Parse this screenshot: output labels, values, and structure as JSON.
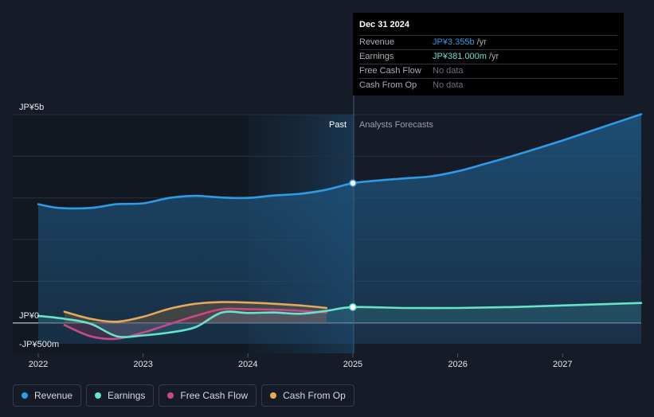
{
  "tooltip": {
    "date": "Dec 31 2024",
    "rows": [
      {
        "label": "Revenue",
        "value": "JP¥3.355b",
        "unit": "/yr",
        "color": "#2f9be6"
      },
      {
        "label": "Earnings",
        "value": "JP¥381.000m",
        "unit": "/yr",
        "color": "#67e3cc"
      },
      {
        "label": "Free Cash Flow",
        "value": "No data",
        "unit": "",
        "color": "#6b7080"
      },
      {
        "label": "Cash From Op",
        "value": "No data",
        "unit": "",
        "color": "#6b7080"
      }
    ]
  },
  "legend": [
    {
      "label": "Revenue",
      "color": "#2f9be6"
    },
    {
      "label": "Earnings",
      "color": "#67e3cc"
    },
    {
      "label": "Free Cash Flow",
      "color": "#c44b87"
    },
    {
      "label": "Cash From Op",
      "color": "#e8a85a"
    }
  ],
  "chart_data": {
    "type": "line",
    "currency_unit": "JP¥ millions",
    "y_tick_labels": [
      {
        "label": "JP¥5b",
        "value": 5000
      },
      {
        "label": "JP¥0",
        "value": 0
      },
      {
        "label": "-JP¥500m",
        "value": -500
      }
    ],
    "ylim": [
      -500,
      5000
    ],
    "x_ticks": [
      "2022",
      "2023",
      "2024",
      "2025",
      "2026",
      "2027"
    ],
    "xlim": [
      2022,
      2027.75
    ],
    "past_label": "Past",
    "forecast_label": "Analysts Forecasts",
    "divider_x": 2025,
    "grid": true,
    "series": [
      {
        "name": "Revenue",
        "color": "#2f9be6",
        "x": [
          2022,
          2022.2,
          2022.5,
          2022.75,
          2023,
          2023.25,
          2023.5,
          2023.75,
          2024,
          2024.25,
          2024.5,
          2024.75,
          2025,
          2025.25,
          2025.5,
          2025.75,
          2026,
          2026.25,
          2026.5,
          2026.75,
          2027,
          2027.25,
          2027.5,
          2027.75
        ],
        "y": [
          2850,
          2760,
          2760,
          2850,
          2870,
          3000,
          3050,
          3010,
          3000,
          3060,
          3100,
          3200,
          3355,
          3420,
          3470,
          3520,
          3640,
          3810,
          3990,
          4180,
          4380,
          4590,
          4800,
          5010
        ]
      },
      {
        "name": "Earnings",
        "color": "#67e3cc",
        "x": [
          2022,
          2022.25,
          2022.5,
          2022.75,
          2023,
          2023.25,
          2023.5,
          2023.75,
          2024,
          2024.25,
          2024.5,
          2024.75,
          2025,
          2025.5,
          2026,
          2026.5,
          2027,
          2027.75
        ],
        "y": [
          170,
          100,
          -20,
          -320,
          -300,
          -230,
          -100,
          250,
          240,
          250,
          220,
          290,
          381,
          360,
          360,
          380,
          420,
          480
        ]
      },
      {
        "name": "Free Cash Flow",
        "color": "#c44b87",
        "x": [
          2022.25,
          2022.5,
          2022.75,
          2023,
          2023.25,
          2023.5,
          2023.75,
          2024,
          2024.25,
          2024.5,
          2024.75
        ],
        "y": [
          -50,
          -320,
          -380,
          -230,
          -30,
          170,
          330,
          330,
          320,
          290,
          250
        ]
      },
      {
        "name": "Cash From Op",
        "color": "#e8a85a",
        "x": [
          2022.25,
          2022.5,
          2022.75,
          2023,
          2023.25,
          2023.5,
          2023.75,
          2024,
          2024.25,
          2024.5,
          2024.75
        ],
        "y": [
          270,
          100,
          30,
          150,
          340,
          460,
          500,
          490,
          460,
          420,
          360
        ]
      }
    ]
  }
}
